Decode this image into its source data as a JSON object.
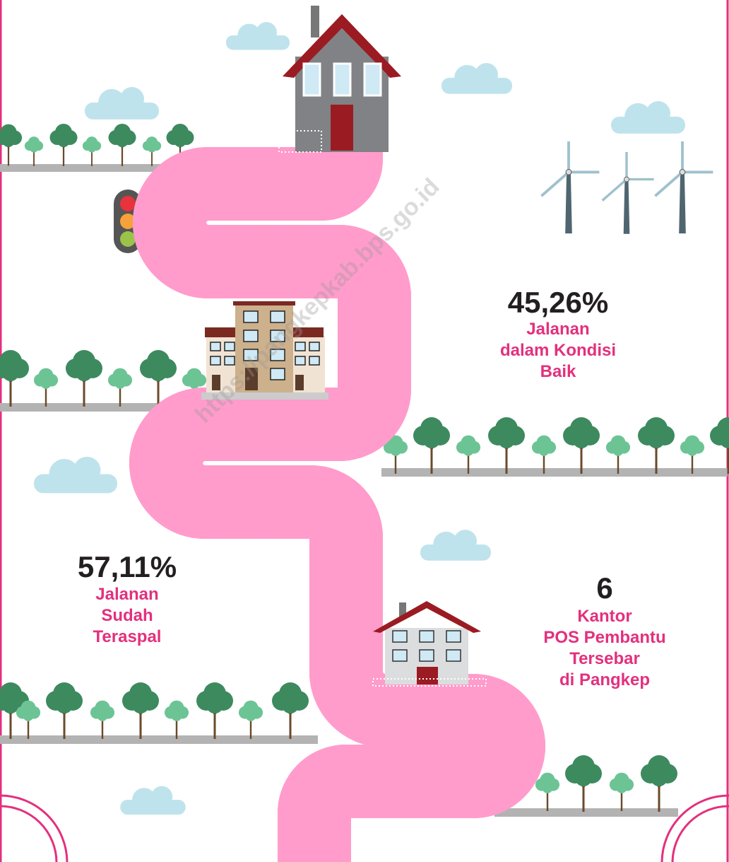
{
  "stats": [
    {
      "value": "45,26%",
      "lines": [
        "Jalanan",
        "dalam Kondisi",
        "Baik"
      ]
    },
    {
      "value": "57,11%",
      "lines": [
        "Jalanan",
        "Sudah",
        "Teraspal"
      ]
    },
    {
      "value": "6",
      "lines": [
        "Kantor",
        "POS Pembantu",
        "Tersebar",
        "di Pangkep"
      ]
    }
  ],
  "watermark": "https://pangkepkab.bps.go.id"
}
